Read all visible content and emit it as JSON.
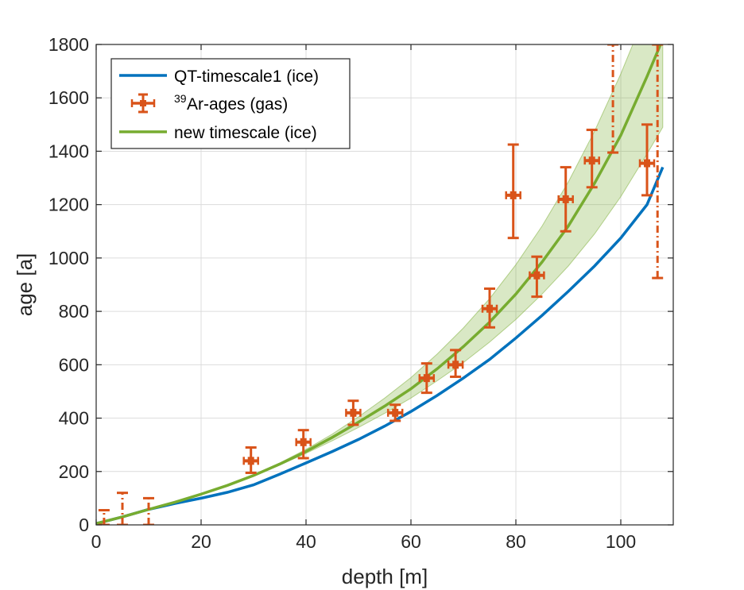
{
  "chart_data": {
    "type": "line",
    "xlabel": "depth [m]",
    "ylabel": "age [a]",
    "xlim": [
      0,
      110
    ],
    "ylim": [
      0,
      1800
    ],
    "xticks": [
      0,
      20,
      40,
      60,
      80,
      100
    ],
    "yticks": [
      0,
      200,
      400,
      600,
      800,
      1000,
      1200,
      1400,
      1600,
      1800
    ],
    "grid": true,
    "legend_position": "top-left",
    "series": [
      {
        "name": "QT-timescale1 (ice)",
        "kind": "line",
        "color": "#0072bd",
        "x": [
          0,
          5,
          10,
          15,
          20,
          25,
          30,
          35,
          40,
          45,
          50,
          55,
          60,
          65,
          70,
          75,
          80,
          85,
          90,
          95,
          100,
          105,
          108
        ],
        "y": [
          5,
          30,
          58,
          80,
          100,
          122,
          150,
          190,
          232,
          275,
          320,
          370,
          425,
          485,
          550,
          620,
          700,
          785,
          875,
          970,
          1075,
          1200,
          1340
        ]
      },
      {
        "name_prefix": "39",
        "name": "Ar-ages (gas)",
        "kind": "errorbar",
        "color": "#d95319",
        "points": [
          {
            "x": 1.5,
            "y": 0,
            "ylow": 0,
            "yhigh": 55,
            "dashed": true
          },
          {
            "x": 5,
            "y": 0,
            "ylow": 0,
            "yhigh": 120,
            "dashed": true
          },
          {
            "x": 10,
            "y": 0,
            "ylow": 0,
            "yhigh": 100,
            "dashed": true
          },
          {
            "x": 29.5,
            "y": 240,
            "ylow": 195,
            "yhigh": 290,
            "dashed": false
          },
          {
            "x": 39.5,
            "y": 310,
            "ylow": 250,
            "yhigh": 355,
            "dashed": false
          },
          {
            "x": 49,
            "y": 420,
            "ylow": 375,
            "yhigh": 465,
            "dashed": false
          },
          {
            "x": 57,
            "y": 420,
            "ylow": 390,
            "yhigh": 450,
            "dashed": false
          },
          {
            "x": 63,
            "y": 550,
            "ylow": 495,
            "yhigh": 605,
            "dashed": false
          },
          {
            "x": 68.5,
            "y": 600,
            "ylow": 555,
            "yhigh": 655,
            "dashed": false
          },
          {
            "x": 75,
            "y": 810,
            "ylow": 740,
            "yhigh": 885,
            "dashed": false
          },
          {
            "x": 79.5,
            "y": 1235,
            "ylow": 1075,
            "yhigh": 1425,
            "dashed": false
          },
          {
            "x": 84,
            "y": 935,
            "ylow": 855,
            "yhigh": 1005,
            "dashed": false
          },
          {
            "x": 89.5,
            "y": 1220,
            "ylow": 1100,
            "yhigh": 1340,
            "dashed": false
          },
          {
            "x": 94.5,
            "y": 1365,
            "ylow": 1265,
            "yhigh": 1480,
            "dashed": false
          },
          {
            "x": 98.5,
            "y": 1600,
            "ylow": 1395,
            "yhigh": 1800,
            "dashed": true
          },
          {
            "x": 105,
            "y": 1355,
            "ylow": 1235,
            "yhigh": 1500,
            "dashed": false
          },
          {
            "x": 107,
            "y": 1400,
            "ylow": 925,
            "yhigh": 1800,
            "dashed": true
          }
        ]
      },
      {
        "name": "new timescale (ice)",
        "kind": "line",
        "color": "#77ac30",
        "band_color": "#77ac30",
        "x": [
          0,
          5,
          10,
          15,
          20,
          25,
          30,
          35,
          40,
          45,
          50,
          55,
          60,
          65,
          70,
          75,
          80,
          85,
          90,
          95,
          100,
          105,
          108
        ],
        "y": [
          5,
          30,
          58,
          85,
          115,
          148,
          185,
          228,
          275,
          328,
          385,
          445,
          510,
          585,
          668,
          760,
          865,
          985,
          1120,
          1280,
          1460,
          1680,
          1820
        ],
        "y_low": [
          5,
          30,
          58,
          85,
          115,
          148,
          183,
          224,
          268,
          315,
          365,
          418,
          475,
          540,
          608,
          685,
          770,
          865,
          970,
          1090,
          1230,
          1390,
          1490
        ],
        "y_high": [
          5,
          30,
          58,
          85,
          115,
          148,
          187,
          232,
          283,
          340,
          405,
          475,
          552,
          640,
          738,
          848,
          975,
          1120,
          1285,
          1475,
          1690,
          1930,
          2080
        ]
      }
    ]
  }
}
